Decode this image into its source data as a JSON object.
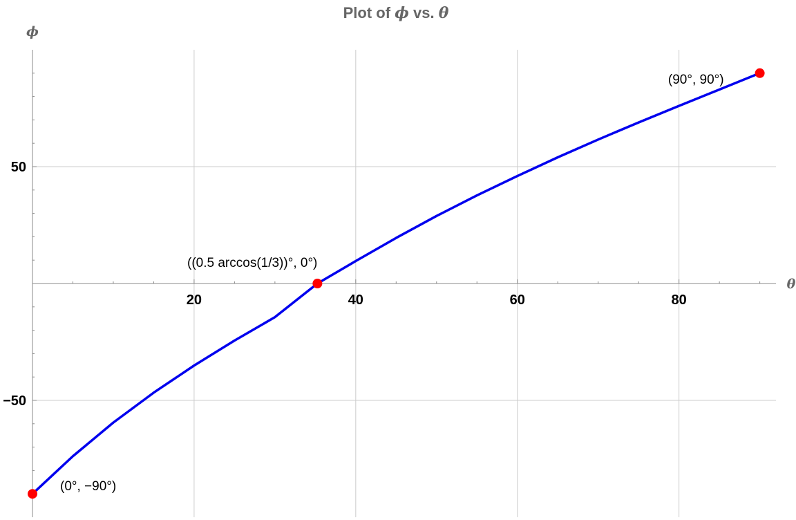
{
  "chart_data": {
    "type": "line",
    "title_prefix": "Plot of ",
    "title_phi": "ϕ",
    "title_mid": " vs. ",
    "title_theta": "θ",
    "xlabel": "θ",
    "ylabel": "ϕ",
    "xlim": [
      0,
      92
    ],
    "ylim": [
      -100,
      100
    ],
    "xticks": [
      20,
      40,
      60,
      80
    ],
    "yticks": [
      -50,
      50
    ],
    "grid": true,
    "series": [
      {
        "color": "#0000ee",
        "x": [
          0,
          5,
          10,
          15,
          20,
          25,
          30,
          35.26,
          40,
          45,
          50,
          55,
          60,
          65,
          70,
          75,
          80,
          85,
          90
        ],
        "y": [
          -90,
          -73.9,
          -59.5,
          -46.7,
          -35.1,
          -24.4,
          -14.4,
          0,
          9.6,
          19.5,
          28.9,
          37.7,
          46.0,
          54.0,
          61.6,
          68.9,
          76.0,
          83.0,
          90
        ]
      }
    ],
    "points": [
      {
        "x": 0,
        "y": -90,
        "label": "(0°, −90°)",
        "color": "#ff0000"
      },
      {
        "x": 35.26,
        "y": 0,
        "label": "((0.5 arccos(1/3))°, 0°)",
        "color": "#ff0000"
      },
      {
        "x": 90,
        "y": 90,
        "label": "(90°, 90°)",
        "color": "#ff0000"
      }
    ]
  }
}
